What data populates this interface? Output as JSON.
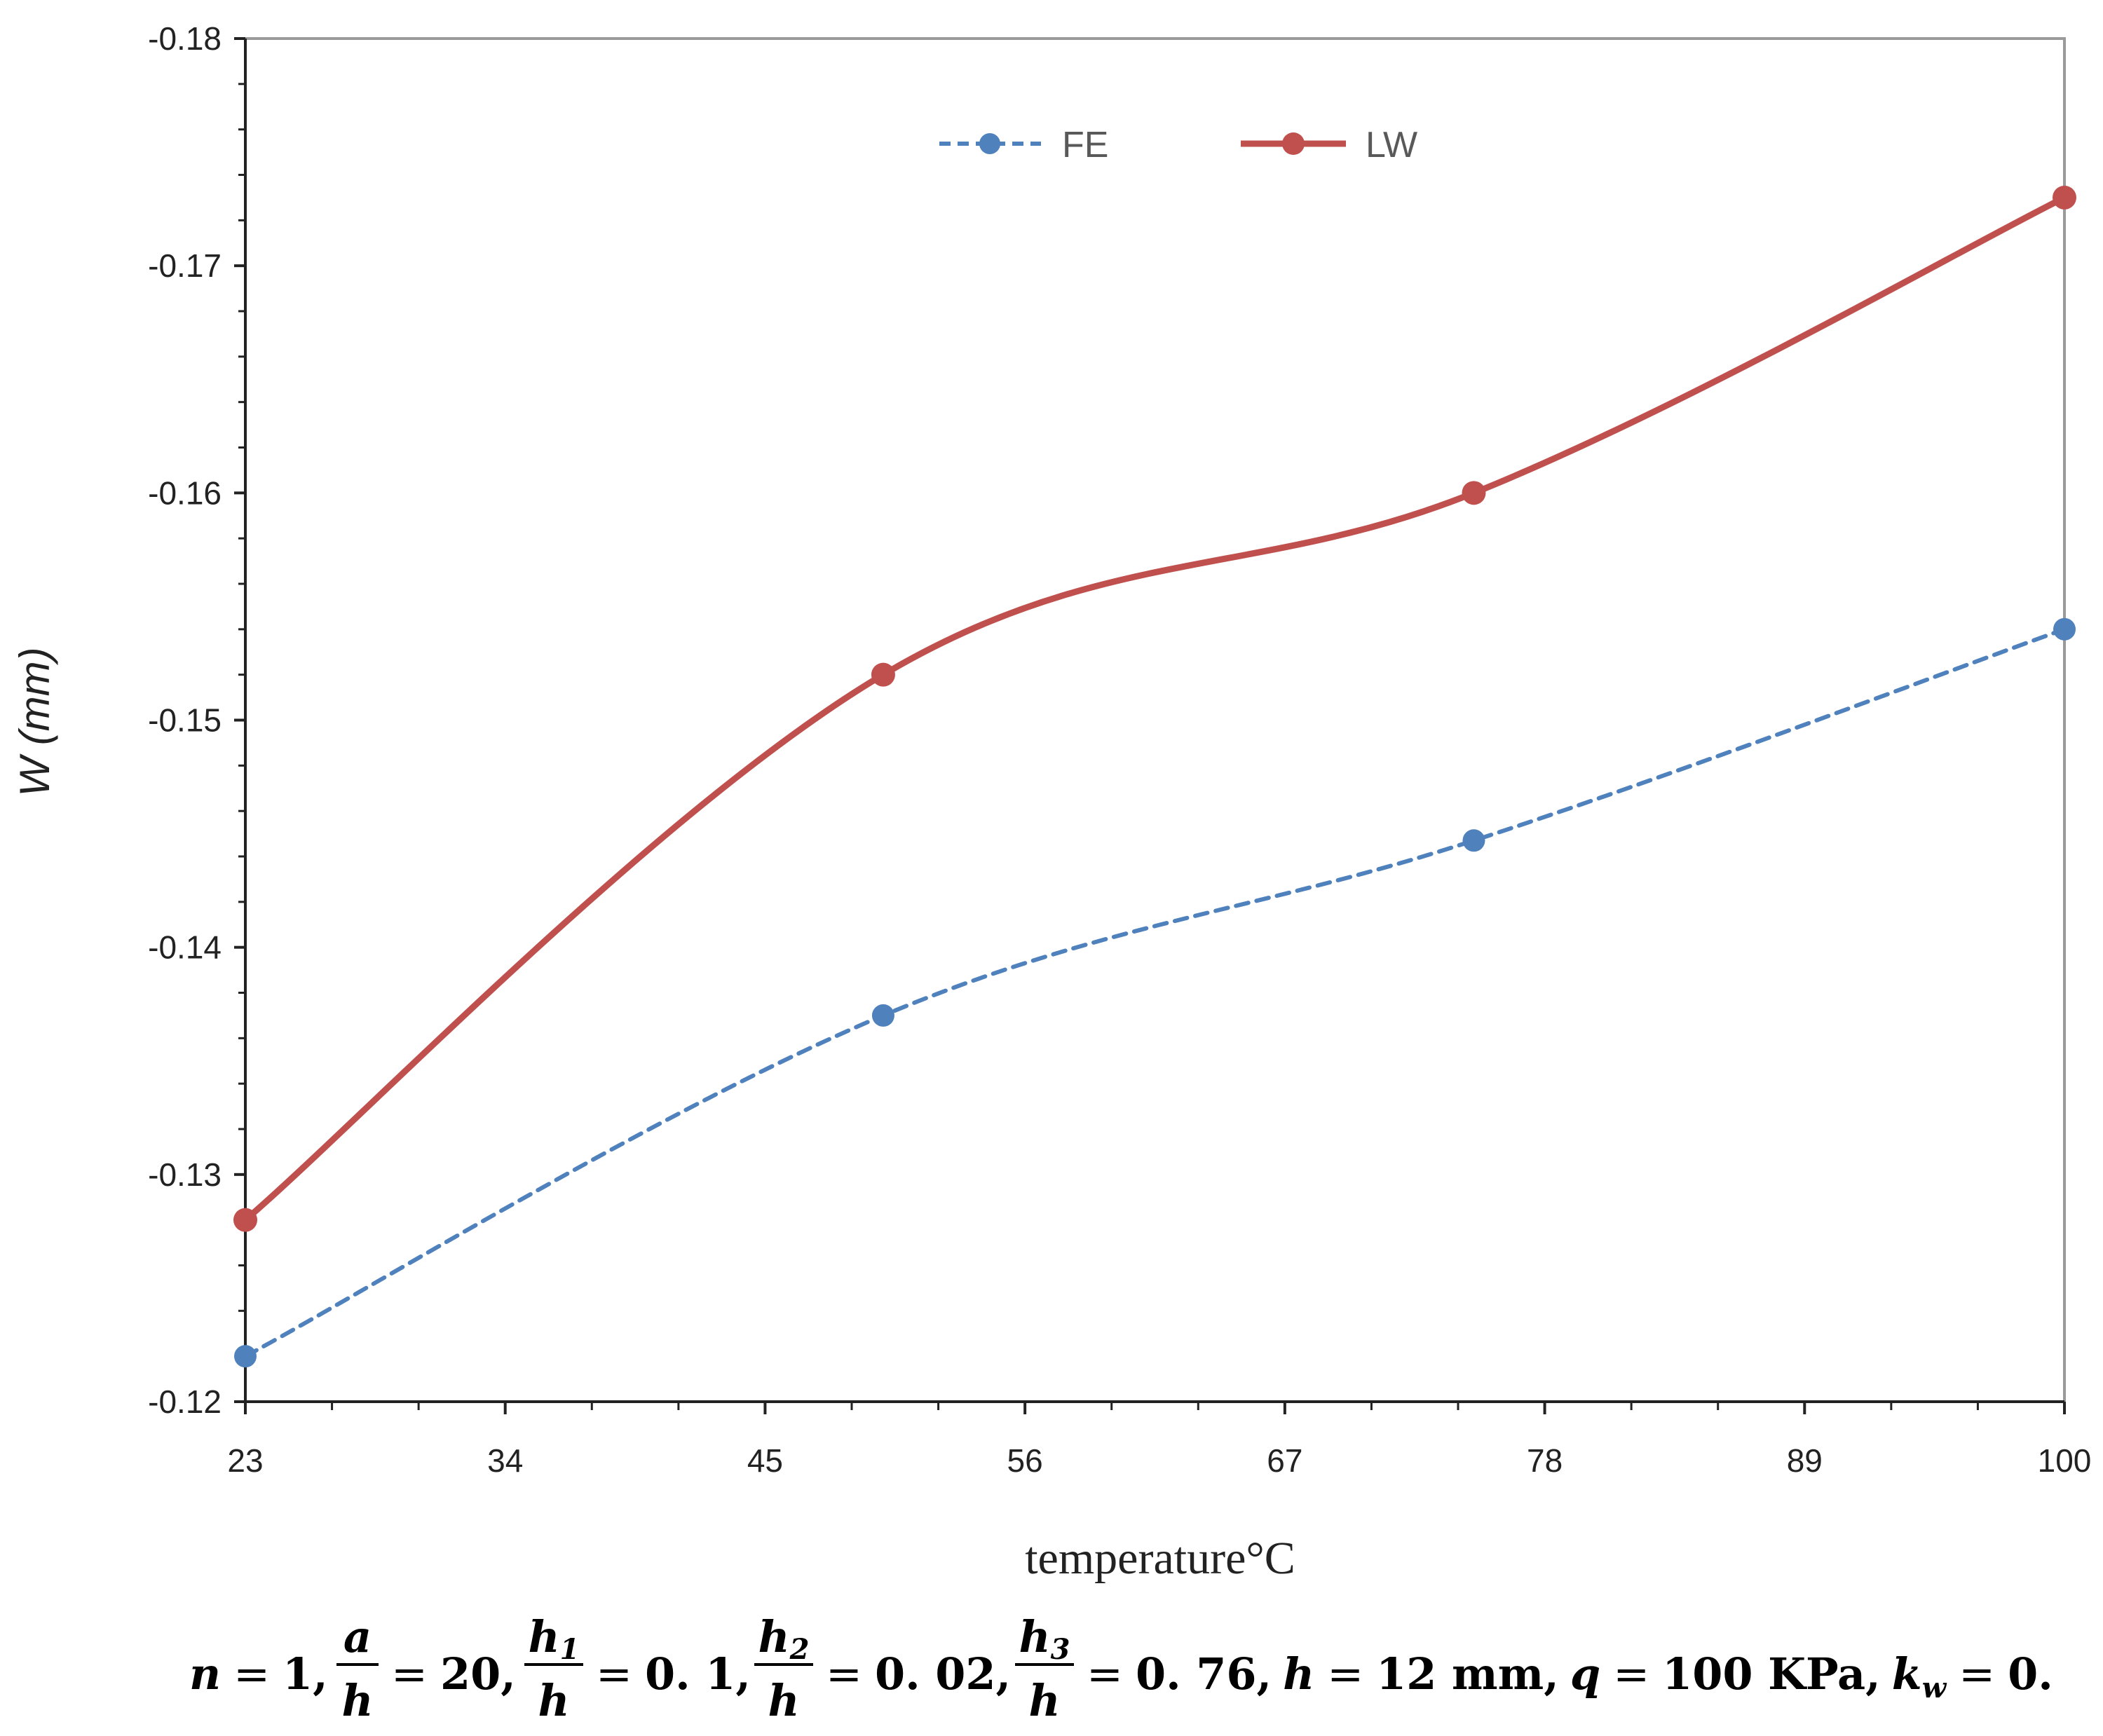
{
  "chart_data": {
    "type": "line",
    "title": "",
    "xlabel": "temperature°C",
    "ylabel": "W (mm)",
    "ylabel_parts": {
      "var": "W",
      "unit": "(mm)"
    },
    "x_range": [
      23,
      100
    ],
    "x_ticks": [
      23,
      34,
      45,
      56,
      67,
      78,
      89,
      100
    ],
    "ylim": [
      -0.12,
      -0.18
    ],
    "y_ticks": [
      -0.12,
      -0.13,
      -0.14,
      -0.15,
      -0.16,
      -0.17,
      -0.18
    ],
    "y_tick_labels": [
      "-0.12",
      "-0.13",
      "-0.14",
      "-0.15",
      "-0.16",
      "-0.17",
      "-0.18"
    ],
    "y_axis_inverted": true,
    "grid": false,
    "legend_position": "top-center",
    "series": [
      {
        "name": "FE",
        "color": "#4f81bd",
        "line_style": "dashed",
        "x": [
          23,
          50,
          75,
          100
        ],
        "y": [
          -0.122,
          -0.137,
          -0.1447,
          -0.154
        ]
      },
      {
        "name": "LW",
        "color": "#c0504d",
        "line_style": "solid",
        "x": [
          23,
          50,
          75,
          100
        ],
        "y": [
          -0.128,
          -0.152,
          -0.16,
          -0.173
        ]
      }
    ],
    "caption": {
      "n_var": "n",
      "n_val": "1,",
      "a_num": "a",
      "a_den": "h",
      "a_val": "20,",
      "h1_num": "h",
      "h1_sub": "1",
      "h1_den": "h",
      "h1_val": "0. 1,",
      "h2_num": "h",
      "h2_sub": "2",
      "h2_den": "h",
      "h2_val": "0. 02,",
      "h3_num": "h",
      "h3_sub": "3",
      "h3_den": "h",
      "h3_val": "0. 76,",
      "h_var": "h",
      "h_val": "12 mm,",
      "q_var": "q",
      "q_val": "100 KPa,",
      "k_var": "k",
      "k_sub": "w",
      "k_val": "0.",
      "eq": "="
    }
  }
}
